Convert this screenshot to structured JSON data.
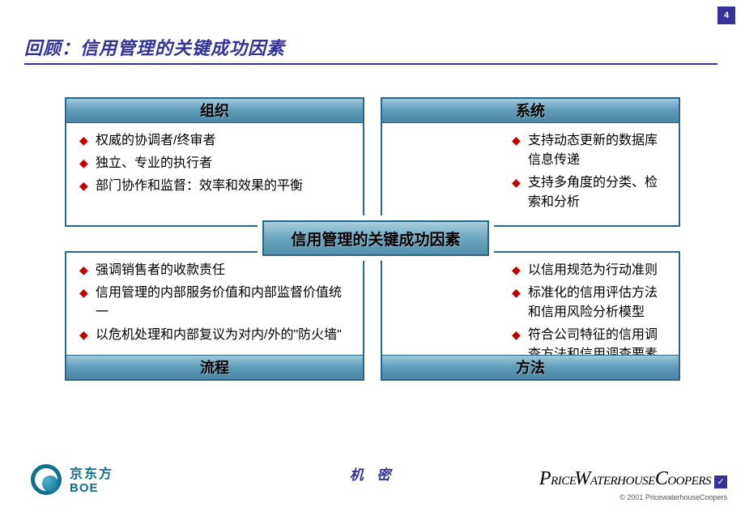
{
  "page_number": "4",
  "slide_title": "回顾：信用管理的关键成功因素",
  "colors": {
    "title_color": "#333399",
    "box_border": "#2a6688",
    "header_grad_top": "#9fc9de",
    "header_grad_mid": "#5f9bb8",
    "header_grad_bot": "#4a87a4",
    "bullet_marker": "#c00000",
    "background": "#ffffff"
  },
  "center_label": "信用管理的关键成功因素",
  "quadrants": {
    "top_left": {
      "header": "组织",
      "items": [
        "权威的协调者/终审者",
        "独立、专业的执行者",
        "部门协作和监督：效率和效果的平衡"
      ]
    },
    "top_right": {
      "header": "系统",
      "items": [
        "支持动态更新的数据库信息传递",
        "支持多角度的分类、检索和分析"
      ]
    },
    "bottom_left": {
      "header": "流程",
      "items": [
        "强调销售者的收款责任",
        "信用管理的内部服务价值和内部监督价值统一",
        "以危机处理和内部复议为对内/外的\"防火墙\""
      ]
    },
    "bottom_right": {
      "header": "方法",
      "items": [
        "以信用规范为行动准则",
        "标准化的信用评估方法和信用风险分析模型",
        "符合公司特征的信用调查方法和信用调查要素"
      ]
    }
  },
  "footer": {
    "client_logo_cn": "京东方",
    "client_logo_en": "BOE",
    "confidential": "机 密",
    "firm_logo": "PricewaterhouseCoopers",
    "copyright": "© 2001 PricewaterhouseCoopers"
  }
}
